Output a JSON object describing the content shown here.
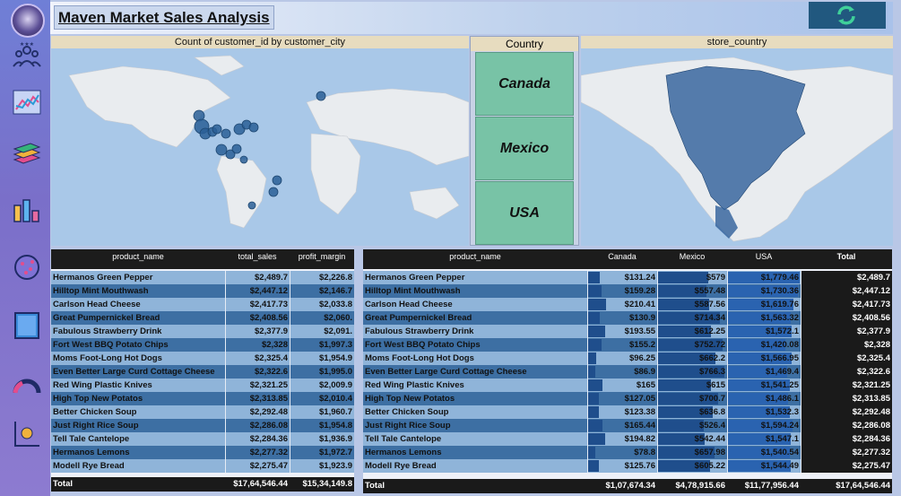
{
  "header": {
    "title": "Maven Market Sales Analysis",
    "refresh_icon": "refresh-icon"
  },
  "sidebar": {
    "items": [
      {
        "name": "logo",
        "icon": "avatar-logo"
      },
      {
        "name": "customers",
        "icon": "people-icon"
      },
      {
        "name": "trends",
        "icon": "line-chart-icon"
      },
      {
        "name": "products",
        "icon": "stack-icon"
      },
      {
        "name": "stores",
        "icon": "bar-chart-icon"
      },
      {
        "name": "scatter",
        "icon": "scatter-icon"
      },
      {
        "name": "table",
        "icon": "table-icon"
      },
      {
        "name": "gauge",
        "icon": "gauge-icon"
      },
      {
        "name": "kpi",
        "icon": "kpi-icon"
      }
    ]
  },
  "map_left": {
    "title": "Count of customer_id by customer_city"
  },
  "country_slicer": {
    "title": "Country",
    "options": [
      "Canada",
      "Mexico",
      "USA"
    ]
  },
  "map_right": {
    "title": "store_country"
  },
  "table_left": {
    "columns": [
      "product_name",
      "total_sales",
      "profit_margin"
    ],
    "rows": [
      [
        "Hermanos Green Pepper",
        "$2,489.7",
        "$2,226.8"
      ],
      [
        "Hilltop Mint Mouthwash",
        "$2,447.12",
        "$2,146.7"
      ],
      [
        "Carlson Head Cheese",
        "$2,417.73",
        "$2,033.8"
      ],
      [
        "Great Pumpernickel Bread",
        "$2,408.56",
        "$2,060."
      ],
      [
        "Fabulous Strawberry Drink",
        "$2,377.9",
        "$2,091."
      ],
      [
        "Fort West BBQ Potato Chips",
        "$2,328",
        "$1,997.3"
      ],
      [
        "Moms Foot-Long Hot Dogs",
        "$2,325.4",
        "$1,954.9"
      ],
      [
        "Even Better Large Curd Cottage Cheese",
        "$2,322.6",
        "$1,995.0"
      ],
      [
        "Red Wing Plastic Knives",
        "$2,321.25",
        "$2,009.9"
      ],
      [
        "High Top New Potatos",
        "$2,313.85",
        "$2,010.4"
      ],
      [
        "Better Chicken Soup",
        "$2,292.48",
        "$1,960.7"
      ],
      [
        "Just Right Rice Soup",
        "$2,286.08",
        "$1,954.8"
      ],
      [
        "Tell Tale Cantelope",
        "$2,284.36",
        "$1,936.9"
      ],
      [
        "Hermanos Lemons",
        "$2,277.32",
        "$1,972.7"
      ],
      [
        "Modell Rye Bread",
        "$2,275.47",
        "$1,923.9"
      ]
    ],
    "total": [
      "Total",
      "$17,64,546.44",
      "$15,34,149.8"
    ]
  },
  "table_right": {
    "columns": [
      "product_name",
      "Canada",
      "Mexico",
      "USA",
      "Total"
    ],
    "rows": [
      [
        "Hermanos Green Pepper",
        "$131.24",
        "$579",
        "$1,779.46",
        "$2,489.7"
      ],
      [
        "Hilltop Mint Mouthwash",
        "$159.28",
        "$557.48",
        "$1,730.36",
        "$2,447.12"
      ],
      [
        "Carlson Head Cheese",
        "$210.41",
        "$587.56",
        "$1,619.76",
        "$2,417.73"
      ],
      [
        "Great Pumpernickel Bread",
        "$130.9",
        "$714.34",
        "$1,563.32",
        "$2,408.56"
      ],
      [
        "Fabulous Strawberry Drink",
        "$193.55",
        "$612.25",
        "$1,572.1",
        "$2,377.9"
      ],
      [
        "Fort West BBQ Potato Chips",
        "$155.2",
        "$752.72",
        "$1,420.08",
        "$2,328"
      ],
      [
        "Moms Foot-Long Hot Dogs",
        "$96.25",
        "$662.2",
        "$1,566.95",
        "$2,325.4"
      ],
      [
        "Even Better Large Curd Cottage Cheese",
        "$86.9",
        "$766.3",
        "$1,469.4",
        "$2,322.6"
      ],
      [
        "Red Wing Plastic Knives",
        "$165",
        "$615",
        "$1,541.25",
        "$2,321.25"
      ],
      [
        "High Top New Potatos",
        "$127.05",
        "$700.7",
        "$1,486.1",
        "$2,313.85"
      ],
      [
        "Better Chicken Soup",
        "$123.38",
        "$636.8",
        "$1,532.3",
        "$2,292.48"
      ],
      [
        "Just Right Rice Soup",
        "$165.44",
        "$526.4",
        "$1,594.24",
        "$2,286.08"
      ],
      [
        "Tell Tale Cantelope",
        "$194.82",
        "$542.44",
        "$1,547.1",
        "$2,284.36"
      ],
      [
        "Hermanos Lemons",
        "$78.8",
        "$657.98",
        "$1,540.54",
        "$2,277.32"
      ],
      [
        "Modell Rye Bread",
        "$125.76",
        "$605.22",
        "$1,544.49",
        "$2,275.47"
      ]
    ],
    "total": [
      "Total",
      "$1,07,674.34",
      "$4,78,915.66",
      "$11,77,956.44",
      "$17,64,546.44"
    ]
  },
  "colors": {
    "row_light": "#8fb4d9",
    "row_dark": "#3d6fa3",
    "header": "#1c1c1c",
    "slicer": "#78c3a6",
    "bubble": "#2a5f96"
  }
}
